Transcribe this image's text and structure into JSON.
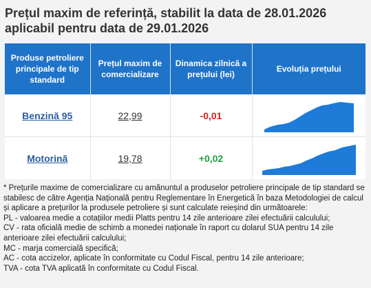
{
  "heading": {
    "line1": "Prețul maxim de referință, stabilit la data de 28.01.2026",
    "line2": "aplicabil pentru data de 29.01.2026"
  },
  "table": {
    "headers": [
      "Produse petroliere principale de tip standard",
      "Prețul maxim de comercializare",
      "Dinamica zilnică a prețului (lei)",
      "Evoluția prețului"
    ],
    "rows": [
      {
        "product": "Benzină 95",
        "price": "22,99",
        "change": "-0,01",
        "trend": "down"
      },
      {
        "product": "Motorină",
        "price": "19,78",
        "change": "+0,02",
        "trend": "up"
      }
    ]
  },
  "colors": {
    "header_bg": "#1f73c9",
    "negative": "#d21f1f",
    "positive": "#1aa33d",
    "link": "#2a5d9f",
    "sparkline": "#1e7bd7"
  },
  "notes": [
    "* Prețurile maxime de comercializare cu amănuntul a produselor petroliere principale de tip standard se stabilesc de către Agenția Națională pentru Reglementare în Energetică în baza Metodologiei de calcul și aplicare a prețurilor la produsele petroliere și sunt calculate reieșind din următoarele:",
    "PL - valoarea medie a cotațiilor medii Platts pentru 14 zile anterioare zilei efectuării calculului;",
    "CV - rata oficială medie de schimb a monedei naționale în raport cu dolarul SUA pentru 14 zile anterioare zilei efectuării calculului;",
    "MC - marja comercială specifică;",
    "AC - cota accizelor, aplicate în conformitate cu Codul Fiscal, pentru 14 zile anterioare;",
    "TVA - cota TVA aplicată în conformitate cu Codul Fiscal."
  ]
}
